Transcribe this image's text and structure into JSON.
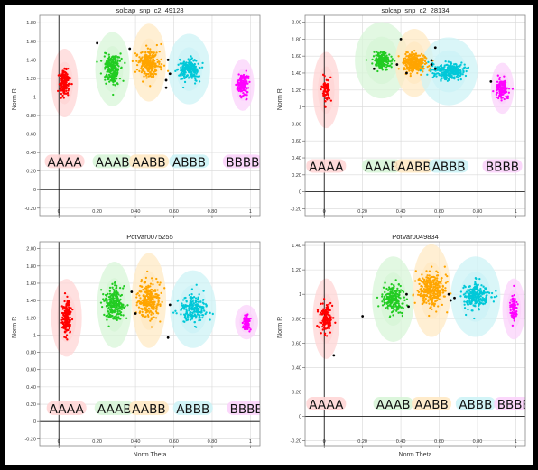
{
  "chart_data": [
    {
      "type": "scatter",
      "title": "solcap_snp_c2_49128",
      "xlabel": "",
      "ylabel": "Norm R",
      "xlim": [
        -0.1,
        1.05
      ],
      "ylim": [
        -0.28,
        1.88
      ],
      "xticks": [
        0,
        0.2,
        0.4,
        0.6,
        0.8,
        1
      ],
      "xtick_labels": [
        "0",
        "0.20",
        "0.40",
        "0.60",
        "0.80",
        "1"
      ],
      "yticks": [
        -0.2,
        0,
        0.2,
        0.4,
        0.6,
        0.8,
        1,
        1.2,
        1.4,
        1.6,
        1.8
      ],
      "ytick_labels": [
        "-0.20",
        "0",
        "0.20",
        "0.40",
        "0.60",
        "0.80",
        "1",
        "1.20",
        "1.40",
        "1.60",
        "1.80"
      ],
      "grid": true,
      "genotype_labels": [
        "AAAA",
        "AAAB",
        "AABB",
        "ABBB",
        "BBBB"
      ],
      "genotype_label_y": 0.3,
      "clusters": [
        {
          "genotype": "AAAA",
          "color": "#ff0000",
          "shade": "#ffd6d6",
          "cx": 0.03,
          "cy": 1.15,
          "sx": 0.012,
          "sy": 0.07,
          "n": 160,
          "ex": 0.07,
          "ey": 0.37
        },
        {
          "genotype": "AAAB",
          "color": "#22cc22",
          "shade": "#d8f5d8",
          "cx": 0.28,
          "cy": 1.3,
          "sx": 0.022,
          "sy": 0.08,
          "n": 220,
          "ex": 0.09,
          "ey": 0.4
        },
        {
          "genotype": "AABB",
          "color": "#ffa500",
          "shade": "#ffe9c4",
          "cx": 0.47,
          "cy": 1.37,
          "sx": 0.028,
          "sy": 0.07,
          "n": 260,
          "ex": 0.09,
          "ey": 0.42
        },
        {
          "genotype": "ABBB",
          "color": "#00c8d8",
          "shade": "#cdf3f6",
          "cx": 0.68,
          "cy": 1.3,
          "sx": 0.03,
          "sy": 0.06,
          "n": 200,
          "ex": 0.11,
          "ey": 0.38
        },
        {
          "genotype": "BBBB",
          "color": "#ff00ff",
          "shade": "#fbd3fb",
          "cx": 0.96,
          "cy": 1.13,
          "sx": 0.015,
          "sy": 0.06,
          "n": 140,
          "ex": 0.06,
          "ey": 0.28
        }
      ],
      "unassigned": [
        [
          0.2,
          1.58
        ],
        [
          0.37,
          1.52
        ],
        [
          0.56,
          1.1
        ],
        [
          0.56,
          1.18
        ],
        [
          0.57,
          1.4
        ],
        [
          0.58,
          1.25
        ]
      ]
    },
    {
      "type": "scatter",
      "title": "solcap_snp_c2_28134",
      "xlabel": "",
      "ylabel": "Norm R",
      "xlim": [
        -0.1,
        1.05
      ],
      "ylim": [
        -0.28,
        2.08
      ],
      "xticks": [
        0,
        0.2,
        0.4,
        0.6,
        0.8,
        1
      ],
      "xtick_labels": [
        "0",
        "0.20",
        "0.40",
        "0.60",
        "0.80",
        "1"
      ],
      "yticks": [
        -0.2,
        0,
        0.2,
        0.4,
        0.6,
        0.8,
        1,
        1.2,
        1.4,
        1.6,
        1.8,
        2
      ],
      "ytick_labels": [
        "-0.20",
        "0",
        "0.20",
        "0.40",
        "0.60",
        "0.80",
        "1",
        "1.20",
        "1.40",
        "1.60",
        "1.80",
        "2.00"
      ],
      "grid": true,
      "genotype_labels": [
        "AAAA",
        "AAAB",
        "AABB",
        "ABBB",
        "BBBB"
      ],
      "genotype_label_y": 0.3,
      "clusters": [
        {
          "genotype": "AAAA",
          "color": "#ff0000",
          "shade": "#ffd6d6",
          "cx": 0.01,
          "cy": 1.2,
          "sx": 0.012,
          "sy": 0.07,
          "n": 70,
          "ex": 0.07,
          "ey": 0.45
        },
        {
          "genotype": "AAAB",
          "color": "#22cc22",
          "shade": "#d8f5d8",
          "cx": 0.3,
          "cy": 1.55,
          "sx": 0.025,
          "sy": 0.05,
          "n": 180,
          "ex": 0.14,
          "ey": 0.45
        },
        {
          "genotype": "AABB",
          "color": "#ffa500",
          "shade": "#ffe9c4",
          "cx": 0.47,
          "cy": 1.52,
          "sx": 0.03,
          "sy": 0.05,
          "n": 280,
          "ex": 0.1,
          "ey": 0.4
        },
        {
          "genotype": "ABBB",
          "color": "#00c8d8",
          "shade": "#cdf3f6",
          "cx": 0.65,
          "cy": 1.42,
          "sx": 0.04,
          "sy": 0.05,
          "n": 260,
          "ex": 0.15,
          "ey": 0.4
        },
        {
          "genotype": "BBBB",
          "color": "#ff00ff",
          "shade": "#fbd3fb",
          "cx": 0.93,
          "cy": 1.22,
          "sx": 0.015,
          "sy": 0.06,
          "n": 130,
          "ex": 0.06,
          "ey": 0.3
        }
      ],
      "unassigned": [
        [
          0.26,
          1.45
        ],
        [
          0.38,
          1.5
        ],
        [
          0.4,
          1.8
        ],
        [
          0.43,
          1.4
        ],
        [
          0.56,
          1.55
        ],
        [
          0.58,
          1.7
        ],
        [
          0.56,
          1.5
        ],
        [
          0.58,
          1.45
        ],
        [
          0.87,
          1.3
        ]
      ]
    },
    {
      "type": "scatter",
      "title": "PotVar0075255",
      "xlabel": "Norm Theta",
      "ylabel": "Norm R",
      "xlim": [
        -0.1,
        1.05
      ],
      "ylim": [
        -0.28,
        2.08
      ],
      "xticks": [
        0,
        0.2,
        0.4,
        0.6,
        0.8,
        1
      ],
      "xtick_labels": [
        "0",
        "0.20",
        "0.40",
        "0.60",
        "0.80",
        "1"
      ],
      "yticks": [
        -0.2,
        0,
        0.2,
        0.4,
        0.6,
        0.8,
        1,
        1.2,
        1.4,
        1.6,
        1.8,
        2
      ],
      "ytick_labels": [
        "-0.20",
        "0",
        "0.20",
        "0.40",
        "0.60",
        "0.80",
        "1",
        "1.20",
        "1.40",
        "1.60",
        "1.80",
        "2.00"
      ],
      "grid": true,
      "genotype_labels": [
        "AAAA",
        "AAAB",
        "AABB",
        "ABBB",
        "BBBB"
      ],
      "genotype_label_y": 0.15,
      "clusters": [
        {
          "genotype": "AAAA",
          "color": "#ff0000",
          "shade": "#ffd6d6",
          "cx": 0.04,
          "cy": 1.2,
          "sx": 0.012,
          "sy": 0.1,
          "n": 180,
          "ex": 0.08,
          "ey": 0.45
        },
        {
          "genotype": "AAAB",
          "color": "#22cc22",
          "shade": "#d8f5d8",
          "cx": 0.29,
          "cy": 1.35,
          "sx": 0.025,
          "sy": 0.1,
          "n": 230,
          "ex": 0.09,
          "ey": 0.5
        },
        {
          "genotype": "AABB",
          "color": "#ffa500",
          "shade": "#ffe9c4",
          "cx": 0.47,
          "cy": 1.4,
          "sx": 0.03,
          "sy": 0.11,
          "n": 260,
          "ex": 0.09,
          "ey": 0.55
        },
        {
          "genotype": "ABBB",
          "color": "#00c8d8",
          "shade": "#cdf3f6",
          "cx": 0.7,
          "cy": 1.3,
          "sx": 0.035,
          "sy": 0.08,
          "n": 200,
          "ex": 0.12,
          "ey": 0.45
        },
        {
          "genotype": "BBBB",
          "color": "#ff00ff",
          "shade": "#fbd3fb",
          "cx": 0.98,
          "cy": 1.15,
          "sx": 0.01,
          "sy": 0.05,
          "n": 80,
          "ex": 0.06,
          "ey": 0.2
        }
      ],
      "unassigned": [
        [
          0.38,
          1.5
        ],
        [
          0.4,
          1.25
        ],
        [
          0.58,
          1.35
        ],
        [
          0.57,
          0.97
        ]
      ]
    },
    {
      "type": "scatter",
      "title": "PotVar0049834",
      "xlabel": "Norm Theta",
      "ylabel": "Norm R",
      "xlim": [
        -0.1,
        1.05
      ],
      "ylim": [
        -0.24,
        1.43
      ],
      "xticks": [
        0,
        0.2,
        0.4,
        0.6,
        0.8,
        1
      ],
      "xtick_labels": [
        "0",
        "0.20",
        "0.40",
        "0.60",
        "0.80",
        "1"
      ],
      "yticks": [
        -0.2,
        0,
        0.2,
        0.4,
        0.6,
        0.8,
        1,
        1.2,
        1.4
      ],
      "ytick_labels": [
        "-0.20",
        "0",
        "0.20",
        "0.40",
        "0.60",
        "0.80",
        "1",
        "1.20",
        "1.40"
      ],
      "grid": true,
      "genotype_labels": [
        "AAAA",
        "AAAB",
        "AABB",
        "ABBB",
        "BBBB"
      ],
      "genotype_label_y": 0.1,
      "clusters": [
        {
          "genotype": "AAAA",
          "color": "#ff0000",
          "shade": "#ffd6d6",
          "cx": 0.01,
          "cy": 0.8,
          "sx": 0.015,
          "sy": 0.06,
          "n": 140,
          "ex": 0.07,
          "ey": 0.33
        },
        {
          "genotype": "AAAB",
          "color": "#22cc22",
          "shade": "#d8f5d8",
          "cx": 0.36,
          "cy": 0.96,
          "sx": 0.03,
          "sy": 0.06,
          "n": 200,
          "ex": 0.11,
          "ey": 0.35
        },
        {
          "genotype": "AABB",
          "color": "#ffa500",
          "shade": "#ffe9c4",
          "cx": 0.56,
          "cy": 1.03,
          "sx": 0.035,
          "sy": 0.07,
          "n": 300,
          "ex": 0.1,
          "ey": 0.38
        },
        {
          "genotype": "ABBB",
          "color": "#00c8d8",
          "shade": "#cdf3f6",
          "cx": 0.79,
          "cy": 0.98,
          "sx": 0.035,
          "sy": 0.05,
          "n": 220,
          "ex": 0.13,
          "ey": 0.33
        },
        {
          "genotype": "BBBB",
          "color": "#ff00ff",
          "shade": "#fbd3fb",
          "cx": 0.99,
          "cy": 0.88,
          "sx": 0.01,
          "sy": 0.05,
          "n": 80,
          "ex": 0.06,
          "ey": 0.25
        }
      ],
      "unassigned": [
        [
          0.05,
          0.5
        ],
        [
          0.2,
          0.82
        ],
        [
          0.43,
          1.0
        ],
        [
          0.44,
          0.9
        ],
        [
          0.65,
          1.0
        ],
        [
          0.66,
          0.95
        ],
        [
          0.68,
          0.97
        ]
      ]
    }
  ]
}
